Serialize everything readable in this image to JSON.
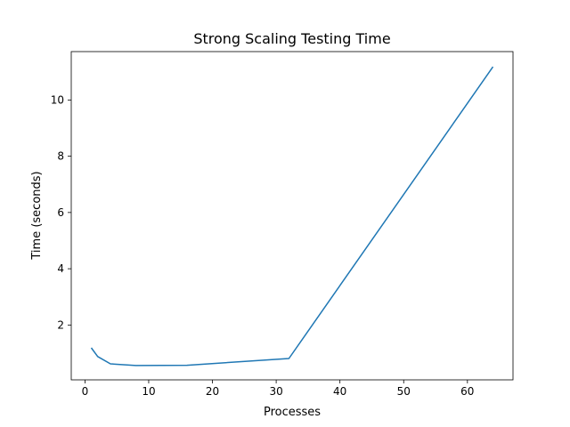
{
  "chart_data": {
    "type": "line",
    "title": "Strong Scaling Testing Time",
    "xlabel": "Processes",
    "ylabel": "Time (seconds)",
    "xlim": [
      -2.15,
      67.15
    ],
    "ylim": [
      0.05,
      11.72
    ],
    "xticks": [
      0,
      10,
      20,
      30,
      40,
      50,
      60
    ],
    "yticks": [
      2,
      4,
      6,
      8,
      10
    ],
    "grid": false,
    "series": [
      {
        "color": "#1f77b4",
        "x": [
          1,
          2,
          4,
          8,
          16,
          32,
          64
        ],
        "y": [
          1.19,
          0.88,
          0.62,
          0.56,
          0.57,
          0.81,
          11.18
        ]
      }
    ]
  }
}
